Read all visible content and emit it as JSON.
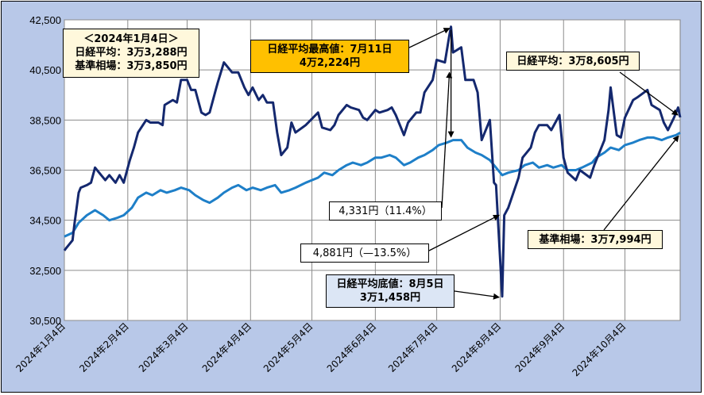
{
  "chart_data": {
    "type": "line",
    "ylim": [
      30500,
      42500
    ],
    "yticks": [
      "30,500",
      "32,500",
      "34,500",
      "36,500",
      "38,500",
      "40,500",
      "42,500"
    ],
    "ytick_values": [
      30500,
      32500,
      34500,
      36500,
      38500,
      40500,
      42500
    ],
    "xticks": [
      "2024年1月4日",
      "2024年2月4日",
      "2024年3月4日",
      "2024年4月4日",
      "2024年5月4日",
      "2024年6月4日",
      "2024年7月4日",
      "2024年8月4日",
      "2024年9月4日",
      "2024年10月4日"
    ],
    "xtick_values": [
      "2024-01-04",
      "2024-02-04",
      "2024-03-04",
      "2024-04-04",
      "2024-05-04",
      "2024-06-04",
      "2024-07-04",
      "2024-08-04",
      "2024-09-04",
      "2024-10-04"
    ],
    "grid": true,
    "colors": {
      "nikkei": "#14286e",
      "base": "#1e7fc8",
      "plot_bg": "#ffffff",
      "frame_bg": "#b8c8e8"
    },
    "series": [
      {
        "color": "#14286e",
        "x": [
          "2024-01-04",
          "2024-01-05",
          "2024-01-08",
          "2024-01-09",
          "2024-01-11",
          "2024-01-12",
          "2024-01-15",
          "2024-01-17",
          "2024-01-19",
          "2024-01-22",
          "2024-01-24",
          "2024-01-26",
          "2024-01-29",
          "2024-01-31",
          "2024-02-02",
          "2024-02-05",
          "2024-02-07",
          "2024-02-09",
          "2024-02-13",
          "2024-02-15",
          "2024-02-19",
          "2024-02-21",
          "2024-02-22",
          "2024-02-26",
          "2024-02-28",
          "2024-03-01",
          "2024-03-04",
          "2024-03-06",
          "2024-03-08",
          "2024-03-11",
          "2024-03-13",
          "2024-03-15",
          "2024-03-18",
          "2024-03-19",
          "2024-03-22",
          "2024-03-26",
          "2024-03-29",
          "2024-04-01",
          "2024-04-03",
          "2024-04-05",
          "2024-04-08",
          "2024-04-10",
          "2024-04-12",
          "2024-04-15",
          "2024-04-17",
          "2024-04-19",
          "2024-04-22",
          "2024-04-24",
          "2024-04-26",
          "2024-05-01",
          "2024-05-07",
          "2024-05-09",
          "2024-05-13",
          "2024-05-15",
          "2024-05-17",
          "2024-05-21",
          "2024-05-23",
          "2024-05-27",
          "2024-05-29",
          "2024-05-31",
          "2024-06-04",
          "2024-06-06",
          "2024-06-10",
          "2024-06-12",
          "2024-06-14",
          "2024-06-18",
          "2024-06-20",
          "2024-06-24",
          "2024-06-26",
          "2024-06-28",
          "2024-07-02",
          "2024-07-04",
          "2024-07-08",
          "2024-07-10",
          "2024-07-11",
          "2024-07-12",
          "2024-07-16",
          "2024-07-18",
          "2024-07-22",
          "2024-07-24",
          "2024-07-26",
          "2024-07-30",
          "2024-08-01",
          "2024-08-02",
          "2024-08-05",
          "2024-08-06",
          "2024-08-08",
          "2024-08-13",
          "2024-08-15",
          "2024-08-19",
          "2024-08-21",
          "2024-08-23",
          "2024-08-27",
          "2024-08-29",
          "2024-09-02",
          "2024-09-04",
          "2024-09-06",
          "2024-09-10",
          "2024-09-12",
          "2024-09-17",
          "2024-09-19",
          "2024-09-24",
          "2024-09-26",
          "2024-09-27",
          "2024-09-30",
          "2024-10-02",
          "2024-10-04",
          "2024-10-08",
          "2024-10-10",
          "2024-10-15",
          "2024-10-17",
          "2024-10-21",
          "2024-10-23",
          "2024-10-25",
          "2024-10-28",
          "2024-10-30",
          "2024-10-31"
        ],
        "values": [
          33288,
          33400,
          33700,
          34400,
          35600,
          35800,
          35900,
          36000,
          36600,
          36300,
          36100,
          36300,
          36000,
          36300,
          36000,
          36900,
          37400,
          38000,
          38500,
          38400,
          38400,
          38300,
          39100,
          39300,
          39200,
          40100,
          40100,
          39700,
          39700,
          38800,
          38700,
          38800,
          39700,
          40000,
          40800,
          40400,
          40400,
          39800,
          39500,
          39800,
          39300,
          39500,
          39200,
          39200,
          38000,
          37100,
          37400,
          38400,
          38000,
          38300,
          38800,
          38200,
          38100,
          38300,
          38700,
          39100,
          39000,
          38900,
          38600,
          38500,
          38900,
          38800,
          38900,
          39000,
          38700,
          37900,
          38400,
          38800,
          38800,
          39600,
          40100,
          40900,
          40800,
          41800,
          42224,
          41200,
          41400,
          40100,
          40100,
          39600,
          37700,
          38500,
          36000,
          35900,
          31458,
          34700,
          35000,
          36200,
          37000,
          37400,
          38000,
          38300,
          38300,
          38100,
          38700,
          37000,
          36400,
          36100,
          36500,
          36200,
          36700,
          37700,
          38900,
          39800,
          37900,
          37800,
          38600,
          39300,
          39400,
          39700,
          39100,
          38900,
          38400,
          38100,
          38600,
          39000,
          38605
        ]
      },
      {
        "color": "#1e7fc8",
        "x": [
          "2024-01-04",
          "2024-01-08",
          "2024-01-11",
          "2024-01-15",
          "2024-01-19",
          "2024-01-23",
          "2024-01-26",
          "2024-01-30",
          "2024-02-02",
          "2024-02-06",
          "2024-02-09",
          "2024-02-13",
          "2024-02-16",
          "2024-02-20",
          "2024-02-23",
          "2024-02-27",
          "2024-03-01",
          "2024-03-05",
          "2024-03-08",
          "2024-03-12",
          "2024-03-15",
          "2024-03-19",
          "2024-03-22",
          "2024-03-26",
          "2024-03-29",
          "2024-04-02",
          "2024-04-05",
          "2024-04-09",
          "2024-04-12",
          "2024-04-16",
          "2024-04-19",
          "2024-04-23",
          "2024-04-26",
          "2024-05-01",
          "2024-05-07",
          "2024-05-10",
          "2024-05-14",
          "2024-05-17",
          "2024-05-21",
          "2024-05-24",
          "2024-05-28",
          "2024-05-31",
          "2024-06-04",
          "2024-06-07",
          "2024-06-11",
          "2024-06-14",
          "2024-06-18",
          "2024-06-21",
          "2024-06-25",
          "2024-06-28",
          "2024-07-02",
          "2024-07-05",
          "2024-07-09",
          "2024-07-12",
          "2024-07-16",
          "2024-07-19",
          "2024-07-23",
          "2024-07-26",
          "2024-07-30",
          "2024-08-02",
          "2024-08-05",
          "2024-08-08",
          "2024-08-13",
          "2024-08-16",
          "2024-08-20",
          "2024-08-23",
          "2024-08-27",
          "2024-08-30",
          "2024-09-03",
          "2024-09-06",
          "2024-09-10",
          "2024-09-13",
          "2024-09-18",
          "2024-09-20",
          "2024-09-24",
          "2024-09-27",
          "2024-10-01",
          "2024-10-04",
          "2024-10-08",
          "2024-10-11",
          "2024-10-15",
          "2024-10-18",
          "2024-10-22",
          "2024-10-25",
          "2024-10-29",
          "2024-10-31"
        ],
        "values": [
          33850,
          34000,
          34400,
          34700,
          34900,
          34700,
          34500,
          34600,
          34700,
          35000,
          35400,
          35600,
          35500,
          35700,
          35600,
          35700,
          35800,
          35700,
          35500,
          35300,
          35200,
          35400,
          35600,
          35800,
          35900,
          35700,
          35800,
          35700,
          35800,
          35900,
          35600,
          35700,
          35800,
          36000,
          36200,
          36400,
          36300,
          36500,
          36700,
          36800,
          36700,
          36800,
          37000,
          37000,
          37100,
          37000,
          36700,
          36800,
          37000,
          37100,
          37300,
          37500,
          37600,
          37700,
          37700,
          37400,
          37200,
          37100,
          36900,
          36600,
          36300,
          36400,
          36500,
          36700,
          36800,
          36600,
          36700,
          36600,
          36700,
          36500,
          36500,
          36600,
          36800,
          37000,
          37200,
          37400,
          37300,
          37500,
          37600,
          37700,
          37800,
          37800,
          37700,
          37800,
          37900,
          37994
        ]
      }
    ]
  },
  "annotations": {
    "start": {
      "line1": "＜2024年1月4日＞",
      "line2": "日経平均：3万3,288円",
      "line3": "基準相場：3万3,850円"
    },
    "high": {
      "line1": "日経平均最高値：7月11日",
      "line2": "4万2,224円"
    },
    "latest_nikkei": {
      "text": "日経平均：3万8,605円"
    },
    "rise": {
      "text": "4,331円（11.4%）"
    },
    "fall": {
      "text": "4,881円（—13.5%）"
    },
    "low": {
      "line1": "日経平均底値：8月5日",
      "line2": "3万1,458円"
    },
    "latest_base": {
      "text": "基準相場：3万7,994円"
    }
  }
}
